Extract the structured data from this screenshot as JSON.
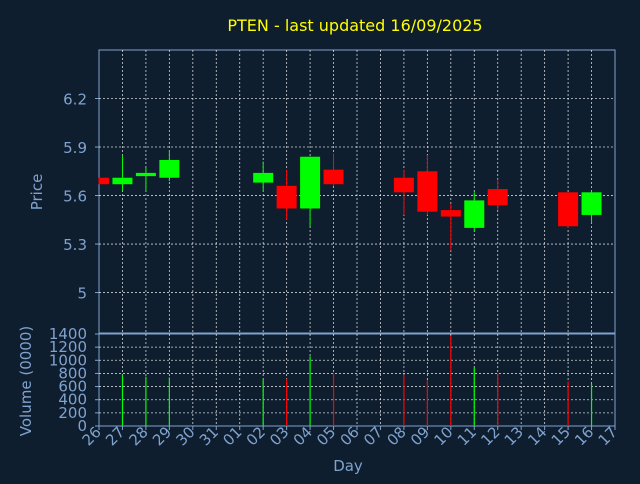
{
  "colors": {
    "background": "#0f1e2e",
    "title": "#ffff00",
    "axis_text": "#7fa2cf",
    "grid": "#ffffff",
    "frame": "#7fa2cf",
    "up": "#00ff00",
    "down": "#ff0000"
  },
  "chart_data": [
    {
      "type": "candlestick",
      "title": "PTEN - last updated 16/09/2025",
      "ylabel": "Price",
      "ylim": [
        4.75,
        6.5
      ],
      "yticks": [
        5,
        5.3,
        5.6,
        5.9,
        6.2
      ],
      "ytick_labels": [
        "5",
        "5.3",
        "5.6",
        "5.9",
        "6.2"
      ],
      "grid": true,
      "x_ticks": [
        "26",
        "27",
        "28",
        "29",
        "30",
        "31",
        "01",
        "02",
        "03",
        "04",
        "05",
        "06",
        "07",
        "08",
        "09",
        "10",
        "11",
        "12",
        "13",
        "14",
        "15",
        "16",
        "17"
      ],
      "candles": [
        {
          "day": "26",
          "open": 5.71,
          "high": 5.71,
          "low": 5.67,
          "close": 5.67
        },
        {
          "day": "27",
          "open": 5.67,
          "high": 5.85,
          "low": 5.63,
          "close": 5.71
        },
        {
          "day": "28",
          "open": 5.72,
          "high": 5.77,
          "low": 5.63,
          "close": 5.74
        },
        {
          "day": "29",
          "open": 5.71,
          "high": 5.88,
          "low": 5.69,
          "close": 5.82
        },
        {
          "day": "02",
          "open": 5.68,
          "high": 5.81,
          "low": 5.63,
          "close": 5.74
        },
        {
          "day": "03",
          "open": 5.66,
          "high": 5.76,
          "low": 5.45,
          "close": 5.52
        },
        {
          "day": "04",
          "open": 5.52,
          "high": 5.84,
          "low": 5.41,
          "close": 5.84
        },
        {
          "day": "05",
          "open": 5.76,
          "high": 5.86,
          "low": 5.66,
          "close": 5.67
        },
        {
          "day": "08",
          "open": 5.71,
          "high": 5.76,
          "low": 5.48,
          "close": 5.62
        },
        {
          "day": "09",
          "open": 5.75,
          "high": 5.85,
          "low": 5.48,
          "close": 5.5
        },
        {
          "day": "10",
          "open": 5.51,
          "high": 5.55,
          "low": 5.26,
          "close": 5.47
        },
        {
          "day": "11",
          "open": 5.4,
          "high": 5.62,
          "low": 5.38,
          "close": 5.57
        },
        {
          "day": "12",
          "open": 5.64,
          "high": 5.7,
          "low": 5.51,
          "close": 5.54
        },
        {
          "day": "15",
          "open": 5.62,
          "high": 5.62,
          "low": 5.4,
          "close": 5.41
        },
        {
          "day": "16",
          "open": 5.48,
          "high": 5.63,
          "low": 5.43,
          "close": 5.62
        }
      ]
    },
    {
      "type": "bar",
      "ylabel": "Volume (0000)",
      "xlabel": "Day",
      "ylim": [
        0,
        1400
      ],
      "yticks": [
        0,
        200,
        400,
        600,
        800,
        1000,
        1200,
        1400
      ],
      "ytick_labels": [
        "0",
        "200",
        "400",
        "600",
        "800",
        "1000",
        "1200",
        "1400"
      ],
      "categories": [
        "27",
        "28",
        "29",
        "02",
        "03",
        "04",
        "05",
        "08",
        "09",
        "10",
        "11",
        "12",
        "15",
        "16"
      ],
      "values": [
        780,
        750,
        740,
        700,
        720,
        1060,
        800,
        780,
        700,
        1370,
        890,
        800,
        680,
        640
      ],
      "direction": [
        "up",
        "up",
        "up",
        "up",
        "down",
        "up",
        "down",
        "down",
        "down",
        "down",
        "up",
        "down",
        "down",
        "up"
      ]
    }
  ]
}
